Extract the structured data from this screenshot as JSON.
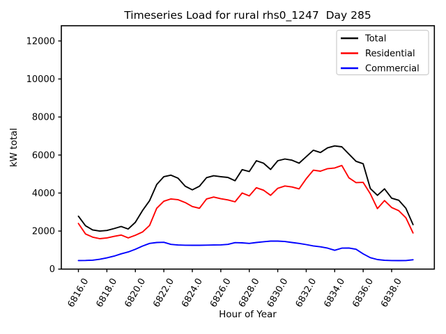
{
  "chart_data": {
    "type": "line",
    "title": "Timeseries Load for rural rhs0_1247  Day 285",
    "xlabel": "Hour of Year",
    "ylabel": "kW total",
    "xlim": [
      6814.8,
      6841.0
    ],
    "ylim": [
      0,
      12800
    ],
    "grid": false,
    "background_color": "#ffffff",
    "axes_color": "#000000",
    "legend": {
      "position": "upper right",
      "border_color": "#cccccc",
      "entries": [
        "Total",
        "Residential",
        "Commercial"
      ]
    },
    "xtick_values": [
      6816,
      6818,
      6820,
      6822,
      6824,
      6826,
      6828,
      6830,
      6832,
      6834,
      6836,
      6838
    ],
    "xtick_labels": [
      "6816.0",
      "6818.0",
      "6820.0",
      "6822.0",
      "6824.0",
      "6826.0",
      "6828.0",
      "6830.0",
      "6832.0",
      "6834.0",
      "6836.0",
      "6838.0"
    ],
    "ytick_values": [
      0,
      2000,
      4000,
      6000,
      8000,
      10000,
      12000
    ],
    "ytick_labels": [
      "0",
      "2000",
      "4000",
      "6000",
      "8000",
      "10000",
      "12000"
    ],
    "x": [
      6816.0,
      6816.5,
      6817.0,
      6817.5,
      6818.0,
      6818.5,
      6819.0,
      6819.5,
      6820.0,
      6820.5,
      6821.0,
      6821.5,
      6822.0,
      6822.5,
      6823.0,
      6823.5,
      6824.0,
      6824.5,
      6825.0,
      6825.5,
      6826.0,
      6826.5,
      6827.0,
      6827.5,
      6828.0,
      6828.5,
      6829.0,
      6829.5,
      6830.0,
      6830.5,
      6831.0,
      6831.5,
      6832.0,
      6832.5,
      6833.0,
      6833.5,
      6834.0,
      6834.5,
      6835.0,
      6835.5,
      6836.0,
      6836.5,
      6837.0,
      6837.5,
      6838.0,
      6838.5,
      6839.0,
      6839.5
    ],
    "series": [
      {
        "name": "Total",
        "color": "#000000",
        "values": [
          2780,
          2280,
          2060,
          2000,
          2030,
          2130,
          2240,
          2110,
          2460,
          3080,
          3600,
          4450,
          4860,
          4940,
          4780,
          4360,
          4170,
          4360,
          4810,
          4910,
          4860,
          4820,
          4650,
          5230,
          5130,
          5700,
          5570,
          5240,
          5700,
          5790,
          5730,
          5570,
          5910,
          6250,
          6130,
          6380,
          6480,
          6430,
          6050,
          5670,
          5540,
          4240,
          3880,
          4220,
          3730,
          3620,
          3200,
          2340
        ]
      },
      {
        "name": "Residential",
        "color": "#ff0000",
        "values": [
          2400,
          1850,
          1680,
          1600,
          1640,
          1720,
          1790,
          1640,
          1780,
          1950,
          2300,
          3200,
          3570,
          3690,
          3650,
          3500,
          3290,
          3200,
          3690,
          3790,
          3700,
          3640,
          3540,
          4000,
          3850,
          4280,
          4150,
          3880,
          4250,
          4370,
          4320,
          4220,
          4750,
          5200,
          5150,
          5280,
          5320,
          5450,
          4800,
          4550,
          4560,
          3960,
          3180,
          3600,
          3240,
          3070,
          2700,
          1900
        ]
      },
      {
        "name": "Commercial",
        "color": "#0000ff",
        "values": [
          450,
          455,
          470,
          515,
          590,
          680,
          800,
          900,
          1045,
          1210,
          1350,
          1400,
          1410,
          1300,
          1265,
          1255,
          1250,
          1250,
          1260,
          1265,
          1275,
          1300,
          1390,
          1380,
          1350,
          1400,
          1440,
          1470,
          1470,
          1450,
          1400,
          1350,
          1290,
          1220,
          1170,
          1100,
          990,
          1100,
          1110,
          1045,
          800,
          600,
          500,
          460,
          450,
          445,
          450,
          490
        ]
      }
    ]
  }
}
